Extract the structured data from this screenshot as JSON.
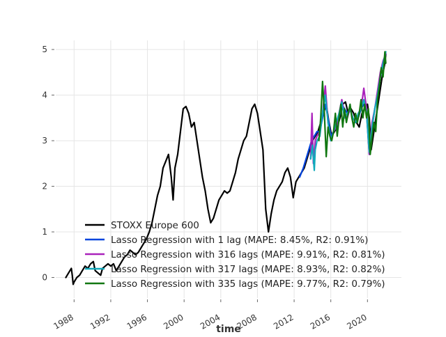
{
  "chart_data": {
    "type": "line",
    "title": "",
    "xlabel": "time",
    "ylabel": "",
    "xlim": [
      1986.0,
      2023.7
    ],
    "ylim": [
      -0.45,
      5.2
    ],
    "grid": true,
    "legend_position": "lower-left",
    "x_ticks": [
      {
        "value": 1988,
        "label": "1988"
      },
      {
        "value": 1992,
        "label": "1992"
      },
      {
        "value": 1996,
        "label": "1996"
      },
      {
        "value": 2000,
        "label": "2000"
      },
      {
        "value": 2004,
        "label": "2004"
      },
      {
        "value": 2008,
        "label": "2008"
      },
      {
        "value": 2012,
        "label": "2012"
      },
      {
        "value": 2016,
        "label": "2016"
      },
      {
        "value": 2020,
        "label": "2020"
      }
    ],
    "y_ticks": [
      {
        "value": 0,
        "label": "0"
      },
      {
        "value": 1,
        "label": "1"
      },
      {
        "value": 2,
        "label": "2"
      },
      {
        "value": 3,
        "label": "3"
      },
      {
        "value": 4,
        "label": "4"
      },
      {
        "value": 5,
        "label": "5"
      }
    ],
    "series": [
      {
        "name": "STOXX Europe 600",
        "color": "#000000",
        "x": [
          1987.1,
          1987.4,
          1987.7,
          1987.8,
          1987.9,
          1988.0,
          1988.3,
          1988.6,
          1988.9,
          1989.2,
          1989.5,
          1989.8,
          1990.1,
          1990.3,
          1990.6,
          1990.9,
          1991.1,
          1991.4,
          1991.7,
          1992.0,
          1992.3,
          1992.6,
          1992.9,
          1993.2,
          1993.5,
          1993.8,
          1994.1,
          1994.4,
          1994.7,
          1995.0,
          1995.3,
          1995.6,
          1995.9,
          1996.2,
          1996.5,
          1996.8,
          1997.1,
          1997.4,
          1997.7,
          1998.0,
          1998.3,
          1998.6,
          1998.8,
          1999.0,
          1999.3,
          1999.6,
          1999.9,
          2000.2,
          2000.5,
          2000.8,
          2001.1,
          2001.4,
          2001.7,
          2002.0,
          2002.3,
          2002.6,
          2002.9,
          2003.2,
          2003.5,
          2003.8,
          2004.1,
          2004.4,
          2004.7,
          2005.0,
          2005.3,
          2005.6,
          2005.9,
          2006.2,
          2006.5,
          2006.8,
          2007.1,
          2007.4,
          2007.7,
          2008.0,
          2008.3,
          2008.6,
          2008.9,
          2009.2,
          2009.5,
          2009.8,
          2010.1,
          2010.4,
          2010.7,
          2011.0,
          2011.3,
          2011.6,
          2011.9,
          2012.2,
          2012.5,
          2012.8,
          2013.1,
          2013.4,
          2013.7,
          2014.0,
          2014.3,
          2014.6,
          2014.9,
          2015.2,
          2015.5,
          2015.8,
          2016.1,
          2016.4,
          2016.7,
          2017.0,
          2017.3,
          2017.6,
          2017.9,
          2018.2,
          2018.5,
          2018.8,
          2019.1,
          2019.4,
          2019.7,
          2020.0,
          2020.2,
          2020.4,
          2020.7,
          2021.0,
          2021.3,
          2021.6,
          2021.9,
          2022.0
        ],
        "values": [
          0.0,
          0.1,
          0.2,
          0.05,
          -0.15,
          -0.1,
          0.0,
          0.05,
          0.15,
          0.25,
          0.2,
          0.3,
          0.35,
          0.15,
          0.1,
          0.05,
          0.2,
          0.25,
          0.3,
          0.25,
          0.3,
          0.15,
          0.25,
          0.35,
          0.45,
          0.5,
          0.6,
          0.55,
          0.5,
          0.55,
          0.65,
          0.75,
          0.85,
          1.0,
          1.2,
          1.5,
          1.8,
          2.0,
          2.4,
          2.55,
          2.7,
          2.2,
          1.7,
          2.4,
          2.7,
          3.2,
          3.7,
          3.75,
          3.6,
          3.3,
          3.4,
          3.0,
          2.6,
          2.2,
          1.9,
          1.5,
          1.2,
          1.3,
          1.5,
          1.7,
          1.8,
          1.9,
          1.85,
          1.9,
          2.1,
          2.3,
          2.6,
          2.8,
          3.0,
          3.1,
          3.4,
          3.7,
          3.8,
          3.6,
          3.2,
          2.8,
          1.5,
          1.0,
          1.4,
          1.7,
          1.9,
          2.0,
          2.1,
          2.3,
          2.4,
          2.2,
          1.75,
          2.1,
          2.2,
          2.3,
          2.4,
          2.6,
          2.8,
          3.0,
          3.1,
          3.2,
          3.4,
          3.6,
          3.8,
          3.4,
          3.1,
          3.2,
          3.3,
          3.5,
          3.8,
          3.85,
          3.6,
          3.7,
          3.6,
          3.4,
          3.3,
          3.6,
          3.7,
          3.8,
          3.5,
          2.8,
          3.2,
          3.6,
          4.0,
          4.4,
          4.7,
          4.9
        ]
      },
      {
        "name": "Lasso Regression with 1 lag (MAPE: 8.45%, R2: 0.91%)",
        "color": "#0044dd",
        "x": [
          2012.6,
          2012.8,
          2013.0,
          2013.3,
          2013.6,
          2013.9,
          2014.2,
          2014.5,
          2014.8,
          2015.1,
          2015.4,
          2015.7,
          2016.0,
          2016.3,
          2016.6,
          2016.9,
          2017.2,
          2017.5,
          2017.8,
          2018.1,
          2018.4,
          2018.7,
          2019.0,
          2019.3,
          2019.6,
          2019.9,
          2020.2,
          2020.5,
          2020.8,
          2021.1,
          2021.4,
          2021.7,
          2022.0
        ],
        "values": [
          2.2,
          2.3,
          2.4,
          2.6,
          2.8,
          3.0,
          3.1,
          3.2,
          3.2,
          3.5,
          3.8,
          3.5,
          3.1,
          3.2,
          3.3,
          3.5,
          3.8,
          3.7,
          3.6,
          3.7,
          3.5,
          3.4,
          3.5,
          3.7,
          3.8,
          3.6,
          2.7,
          3.3,
          3.7,
          4.0,
          4.4,
          4.7,
          4.9
        ]
      },
      {
        "name": "Lasso Regression with 316 lags (MAPE: 9.91%, R2: 0.81%)",
        "color": "#aa22bb",
        "x": [
          2013.8,
          2013.95,
          2014.1,
          2014.3,
          2014.5,
          2014.8,
          2015.1,
          2015.4,
          2015.7,
          2016.0,
          2016.3,
          2016.6,
          2016.9,
          2017.2,
          2017.5,
          2017.8,
          2018.1,
          2018.4,
          2018.7,
          2019.0,
          2019.3,
          2019.6,
          2019.9,
          2020.2,
          2020.5,
          2020.8,
          2021.1,
          2021.4,
          2021.7,
          2022.0
        ],
        "values": [
          2.6,
          3.6,
          2.5,
          3.0,
          3.1,
          3.2,
          3.6,
          4.2,
          3.4,
          3.0,
          3.2,
          3.3,
          3.6,
          3.9,
          3.6,
          3.5,
          3.7,
          3.5,
          3.4,
          3.6,
          3.7,
          4.15,
          3.7,
          2.7,
          3.4,
          3.7,
          4.1,
          4.5,
          4.75,
          4.9
        ]
      },
      {
        "name": "Lasso Regression with 317 lags (MAPE: 8.93%, R2: 0.82%)",
        "color": "#11aabb",
        "x": [
          2013.8,
          2014.0,
          2014.2,
          2014.3,
          2014.5,
          2014.8,
          2015.1,
          2015.4,
          2015.7,
          2016.0,
          2016.3,
          2016.6,
          2016.9,
          2017.2,
          2017.5,
          2017.8,
          2018.1,
          2018.4,
          2018.7,
          2019.0,
          2019.3,
          2019.6,
          2019.9,
          2020.2,
          2020.5,
          2020.8,
          2021.1,
          2021.4,
          2021.7,
          2022.0
        ],
        "values": [
          2.6,
          2.9,
          2.35,
          2.8,
          3.0,
          3.1,
          3.6,
          4.0,
          3.4,
          3.0,
          3.2,
          3.4,
          3.6,
          3.85,
          3.5,
          3.6,
          3.7,
          3.5,
          3.4,
          3.6,
          3.7,
          3.9,
          3.6,
          2.75,
          3.3,
          3.7,
          4.0,
          4.4,
          4.7,
          4.95
        ]
      },
      {
        "name": "Lasso Regression with 335 lags (MAPE: 9.77%, R2: 0.79%)",
        "color": "#117711",
        "x": [
          2014.7,
          2014.9,
          2015.1,
          2015.3,
          2015.5,
          2015.7,
          2015.9,
          2016.1,
          2016.3,
          2016.5,
          2016.7,
          2016.9,
          2017.1,
          2017.3,
          2017.5,
          2017.7,
          2017.9,
          2018.1,
          2018.3,
          2018.5,
          2018.7,
          2018.9,
          2019.1,
          2019.3,
          2019.5,
          2019.7,
          2019.9,
          2020.1,
          2020.3,
          2020.5,
          2020.7,
          2020.9,
          2021.1,
          2021.3,
          2021.5,
          2021.7,
          2021.9,
          2022.0
        ],
        "values": [
          3.0,
          3.5,
          4.3,
          3.6,
          2.65,
          3.3,
          3.1,
          3.0,
          3.2,
          3.6,
          3.1,
          3.5,
          3.8,
          3.3,
          3.7,
          3.4,
          3.6,
          3.8,
          3.5,
          3.3,
          3.6,
          3.4,
          3.6,
          3.9,
          3.5,
          3.8,
          3.5,
          3.7,
          2.7,
          3.1,
          3.4,
          3.2,
          3.9,
          4.2,
          4.6,
          4.4,
          4.95,
          4.7
        ]
      }
    ]
  }
}
